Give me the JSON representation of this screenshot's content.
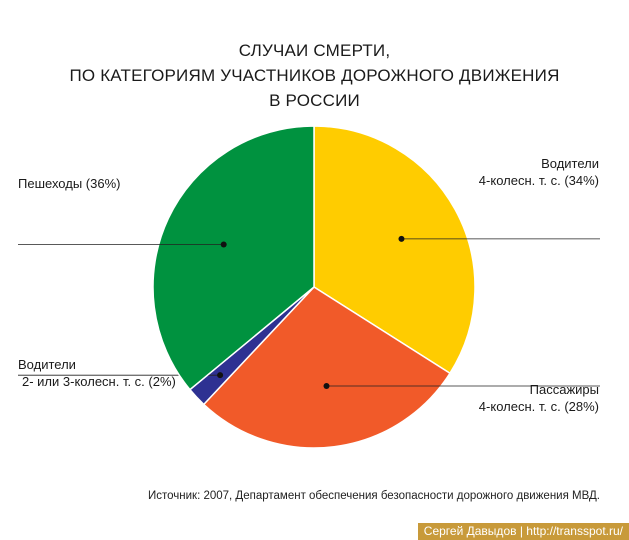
{
  "chart_data": {
    "type": "pie",
    "title_lines": [
      "СЛУЧАИ СМЕРТИ,",
      "ПО КАТЕГОРИЯМ УЧАСТНИКОВ ДОРОЖНОГО ДВИЖЕНИЯ",
      "В РОССИИ"
    ],
    "slices": [
      {
        "label_lines": [
          "Водители",
          "4-колесн. т. с. (34%)"
        ],
        "value": 34,
        "color": "#ffcc00"
      },
      {
        "label_lines": [
          "Пассажиры",
          "4-колесн. т. с. (28%)"
        ],
        "value": 28,
        "color": "#f15a29"
      },
      {
        "label_lines": [
          "Водители",
          "2- или 3-колесн. т. с. (2%)"
        ],
        "value": 2,
        "color": "#2e3192"
      },
      {
        "label_lines": [
          "Пешеходы (36%)"
        ],
        "value": 36,
        "color": "#00923f"
      }
    ],
    "source": "Источник: 2007, Департамент обеспечения безопасности дорожного движения МВД."
  },
  "credit": "Сергей Давыдов | http://transspot.ru/"
}
